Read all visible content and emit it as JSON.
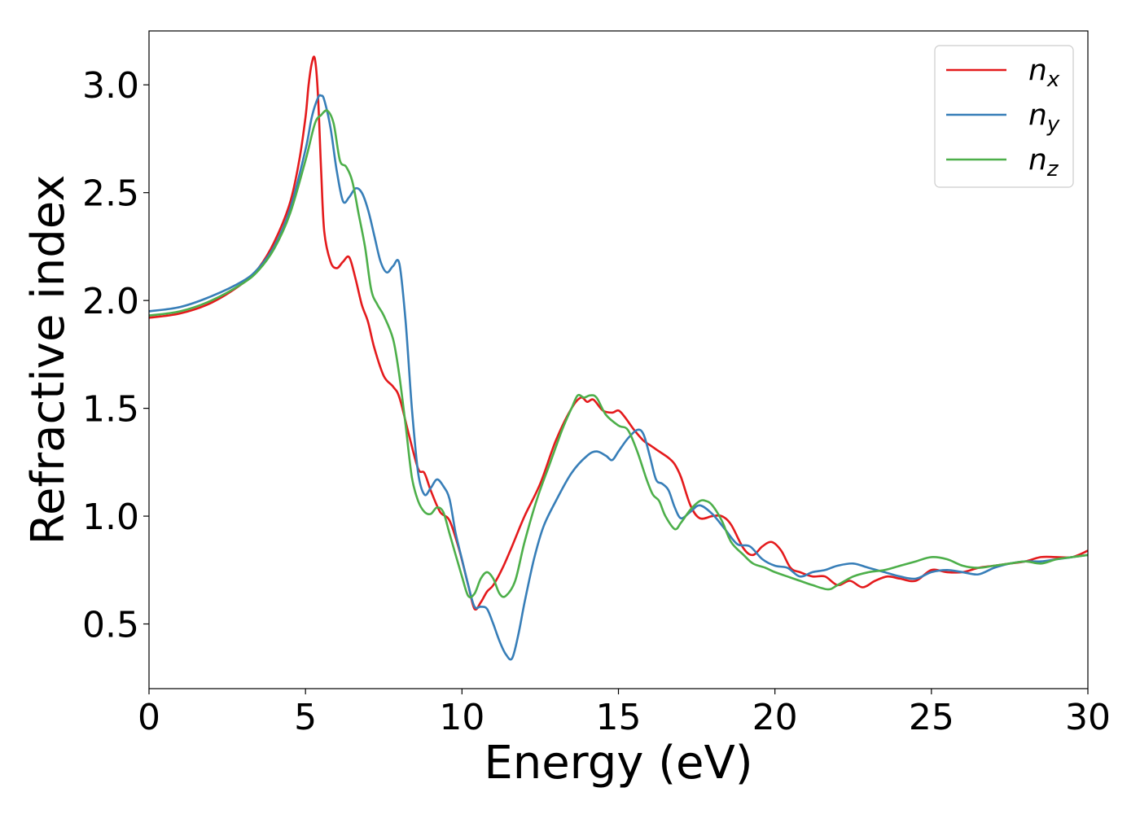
{
  "chart_data": {
    "type": "line",
    "xlabel": "Energy (eV)",
    "ylabel": "Refractive index",
    "xlim": [
      0,
      30
    ],
    "ylim": [
      0.2,
      3.25
    ],
    "xticks": [
      "0",
      "5",
      "10",
      "15",
      "20",
      "25",
      "30"
    ],
    "yticks": [
      "0.5",
      "1.0",
      "1.5",
      "2.0",
      "2.5",
      "3.0"
    ],
    "grid": false,
    "legend_position": "top-right",
    "series": [
      {
        "name": "n",
        "subscript": "x",
        "color": "#e41a1c",
        "x": [
          0,
          1,
          2,
          3,
          3.5,
          4,
          4.5,
          4.8,
          5.0,
          5.1,
          5.2,
          5.3,
          5.4,
          5.5,
          5.6,
          5.8,
          6.0,
          6.2,
          6.4,
          6.6,
          6.8,
          7.0,
          7.2,
          7.5,
          7.8,
          8.0,
          8.3,
          8.6,
          8.8,
          9.0,
          9.3,
          9.6,
          9.9,
          10.2,
          10.4,
          10.6,
          10.8,
          11.0,
          11.3,
          11.6,
          12.0,
          12.5,
          13.0,
          13.5,
          13.8,
          14.0,
          14.2,
          14.5,
          14.8,
          15.0,
          15.2,
          15.5,
          15.8,
          16.0,
          16.3,
          16.6,
          16.8,
          17.0,
          17.3,
          17.6,
          18.0,
          18.3,
          18.6,
          19.0,
          19.3,
          19.6,
          19.9,
          20.2,
          20.5,
          20.8,
          21.2,
          21.6,
          22.0,
          22.4,
          22.8,
          23.2,
          23.6,
          24.0,
          24.5,
          25.0,
          25.5,
          26.0,
          26.5,
          27.0,
          27.5,
          28.0,
          28.5,
          29.0,
          29.5,
          30.0
        ],
        "values": [
          1.92,
          1.94,
          1.99,
          2.08,
          2.15,
          2.27,
          2.45,
          2.65,
          2.85,
          3.0,
          3.1,
          3.12,
          2.95,
          2.6,
          2.32,
          2.18,
          2.15,
          2.18,
          2.2,
          2.1,
          1.98,
          1.9,
          1.78,
          1.65,
          1.6,
          1.55,
          1.38,
          1.22,
          1.2,
          1.12,
          1.02,
          0.98,
          0.85,
          0.68,
          0.57,
          0.6,
          0.65,
          0.68,
          0.76,
          0.86,
          1.0,
          1.15,
          1.35,
          1.5,
          1.55,
          1.53,
          1.54,
          1.49,
          1.48,
          1.49,
          1.46,
          1.4,
          1.35,
          1.33,
          1.3,
          1.27,
          1.24,
          1.18,
          1.05,
          0.99,
          1.0,
          1.0,
          0.96,
          0.85,
          0.82,
          0.86,
          0.88,
          0.84,
          0.76,
          0.74,
          0.72,
          0.72,
          0.68,
          0.7,
          0.67,
          0.7,
          0.72,
          0.71,
          0.7,
          0.75,
          0.74,
          0.74,
          0.76,
          0.77,
          0.78,
          0.79,
          0.81,
          0.81,
          0.81,
          0.84
        ]
      },
      {
        "name": "n",
        "subscript": "y",
        "color": "#377eb8",
        "x": [
          0,
          1,
          2,
          3,
          3.5,
          4,
          4.5,
          5.0,
          5.2,
          5.4,
          5.5,
          5.6,
          5.8,
          6.0,
          6.2,
          6.4,
          6.6,
          6.8,
          7.0,
          7.2,
          7.4,
          7.6,
          7.8,
          8.0,
          8.2,
          8.4,
          8.6,
          8.8,
          9.0,
          9.2,
          9.4,
          9.6,
          9.8,
          10.0,
          10.2,
          10.4,
          10.6,
          10.8,
          11.0,
          11.2,
          11.4,
          11.6,
          11.8,
          12.0,
          12.3,
          12.6,
          13.0,
          13.5,
          14.0,
          14.3,
          14.6,
          14.8,
          15.0,
          15.3,
          15.6,
          15.8,
          16.0,
          16.2,
          16.4,
          16.6,
          16.8,
          17.0,
          17.3,
          17.6,
          18.0,
          18.4,
          18.8,
          19.2,
          19.6,
          20.0,
          20.4,
          20.8,
          21.2,
          21.6,
          22.0,
          22.5,
          23.0,
          23.5,
          24.0,
          24.5,
          25.0,
          25.5,
          26.0,
          26.5,
          27.0,
          27.5,
          28.0,
          28.5,
          29.0,
          29.5,
          30.0
        ],
        "values": [
          1.95,
          1.97,
          2.02,
          2.09,
          2.15,
          2.25,
          2.42,
          2.7,
          2.85,
          2.94,
          2.95,
          2.93,
          2.8,
          2.6,
          2.46,
          2.48,
          2.52,
          2.5,
          2.42,
          2.3,
          2.18,
          2.13,
          2.16,
          2.17,
          1.9,
          1.5,
          1.2,
          1.1,
          1.13,
          1.17,
          1.14,
          1.08,
          0.92,
          0.8,
          0.68,
          0.58,
          0.58,
          0.57,
          0.5,
          0.42,
          0.36,
          0.34,
          0.45,
          0.6,
          0.8,
          0.95,
          1.07,
          1.2,
          1.28,
          1.3,
          1.28,
          1.26,
          1.3,
          1.36,
          1.4,
          1.38,
          1.28,
          1.17,
          1.15,
          1.12,
          1.04,
          0.99,
          1.02,
          1.05,
          1.01,
          0.94,
          0.87,
          0.86,
          0.8,
          0.77,
          0.76,
          0.72,
          0.74,
          0.75,
          0.77,
          0.78,
          0.76,
          0.74,
          0.72,
          0.71,
          0.74,
          0.75,
          0.74,
          0.73,
          0.76,
          0.78,
          0.79,
          0.79,
          0.8,
          0.81,
          0.82
        ]
      },
      {
        "name": "n",
        "subscript": "z",
        "color": "#4daf4a",
        "x": [
          0,
          1,
          2,
          3,
          3.5,
          4,
          4.5,
          5.0,
          5.3,
          5.5,
          5.7,
          5.9,
          6.1,
          6.3,
          6.5,
          6.7,
          6.9,
          7.1,
          7.3,
          7.5,
          7.8,
          8.0,
          8.2,
          8.4,
          8.6,
          8.8,
          9.0,
          9.2,
          9.4,
          9.6,
          9.8,
          10.0,
          10.2,
          10.4,
          10.6,
          10.8,
          11.0,
          11.2,
          11.4,
          11.7,
          12.0,
          12.4,
          12.8,
          13.2,
          13.5,
          13.7,
          13.9,
          14.1,
          14.3,
          14.6,
          15.0,
          15.3,
          15.6,
          15.9,
          16.1,
          16.3,
          16.5,
          16.8,
          17.0,
          17.3,
          17.6,
          17.8,
          18.0,
          18.3,
          18.6,
          19.0,
          19.3,
          19.7,
          20.0,
          20.4,
          20.8,
          21.2,
          21.7,
          22.0,
          22.5,
          23.0,
          23.5,
          24.0,
          24.5,
          25.0,
          25.5,
          26.0,
          26.5,
          27.0,
          27.5,
          28.0,
          28.5,
          29.0,
          29.5,
          30.0
        ],
        "values": [
          1.93,
          1.95,
          2.0,
          2.08,
          2.14,
          2.24,
          2.4,
          2.65,
          2.82,
          2.86,
          2.88,
          2.82,
          2.65,
          2.62,
          2.55,
          2.4,
          2.25,
          2.05,
          1.98,
          1.93,
          1.82,
          1.65,
          1.42,
          1.18,
          1.07,
          1.02,
          1.01,
          1.04,
          1.02,
          0.92,
          0.82,
          0.72,
          0.63,
          0.64,
          0.71,
          0.74,
          0.71,
          0.64,
          0.63,
          0.7,
          0.88,
          1.08,
          1.24,
          1.4,
          1.5,
          1.56,
          1.55,
          1.56,
          1.55,
          1.47,
          1.42,
          1.4,
          1.3,
          1.17,
          1.1,
          1.07,
          1.0,
          0.94,
          0.97,
          1.03,
          1.07,
          1.07,
          1.05,
          0.98,
          0.88,
          0.82,
          0.78,
          0.76,
          0.74,
          0.72,
          0.7,
          0.68,
          0.66,
          0.68,
          0.72,
          0.74,
          0.75,
          0.77,
          0.79,
          0.81,
          0.8,
          0.77,
          0.76,
          0.77,
          0.78,
          0.79,
          0.78,
          0.8,
          0.81,
          0.82
        ]
      }
    ]
  }
}
